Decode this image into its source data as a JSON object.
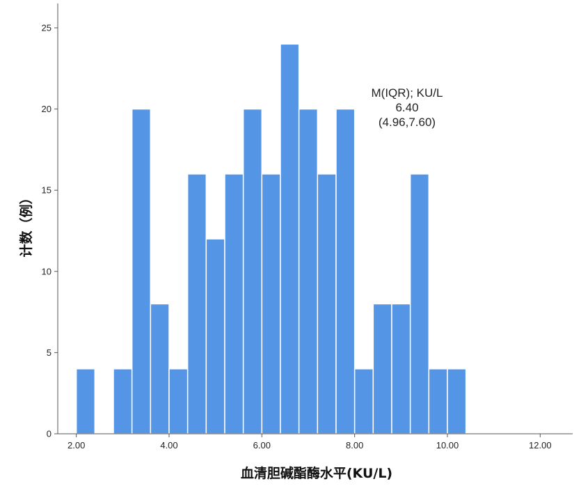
{
  "chart_data": {
    "type": "bar",
    "title": "",
    "xlabel": "血清胆碱酯酶水平(KU/L)",
    "ylabel": "计数（例）",
    "xlim": [
      1.6,
      12.7
    ],
    "ylim": [
      0,
      26.5
    ],
    "bin_width": 0.4,
    "x_ticks": [
      {
        "value": 2,
        "label": "2.00"
      },
      {
        "value": 4,
        "label": "4.00"
      },
      {
        "value": 6,
        "label": "6.00"
      },
      {
        "value": 8,
        "label": "8.00"
      },
      {
        "value": 10,
        "label": "10.00"
      },
      {
        "value": 12,
        "label": "12.00"
      }
    ],
    "y_ticks": [
      {
        "value": 0,
        "label": "0"
      },
      {
        "value": 5,
        "label": "5"
      },
      {
        "value": 10,
        "label": "10"
      },
      {
        "value": 15,
        "label": "15"
      },
      {
        "value": 20,
        "label": "20"
      },
      {
        "value": 25,
        "label": "25"
      }
    ],
    "bins": [
      {
        "x0": 2.0,
        "x1": 2.4,
        "count": 4
      },
      {
        "x0": 2.8,
        "x1": 3.2,
        "count": 4
      },
      {
        "x0": 3.2,
        "x1": 3.6,
        "count": 20
      },
      {
        "x0": 3.6,
        "x1": 4.0,
        "count": 8
      },
      {
        "x0": 4.0,
        "x1": 4.4,
        "count": 4
      },
      {
        "x0": 4.4,
        "x1": 4.8,
        "count": 16
      },
      {
        "x0": 4.8,
        "x1": 5.2,
        "count": 12
      },
      {
        "x0": 5.2,
        "x1": 5.6,
        "count": 16
      },
      {
        "x0": 5.6,
        "x1": 6.0,
        "count": 20
      },
      {
        "x0": 6.0,
        "x1": 6.4,
        "count": 16
      },
      {
        "x0": 6.4,
        "x1": 6.8,
        "count": 24
      },
      {
        "x0": 6.8,
        "x1": 7.2,
        "count": 20
      },
      {
        "x0": 7.2,
        "x1": 7.6,
        "count": 16
      },
      {
        "x0": 7.6,
        "x1": 8.0,
        "count": 20
      },
      {
        "x0": 8.0,
        "x1": 8.4,
        "count": 4
      },
      {
        "x0": 8.4,
        "x1": 8.8,
        "count": 8
      },
      {
        "x0": 8.8,
        "x1": 9.2,
        "count": 8
      },
      {
        "x0": 9.2,
        "x1": 9.6,
        "count": 16
      },
      {
        "x0": 9.6,
        "x1": 10.0,
        "count": 4
      },
      {
        "x0": 10.0,
        "x1": 10.4,
        "count": 4
      }
    ],
    "annotation": {
      "lines": [
        "M(IQR); KU/L",
        "6.40",
        "(4.96,7.60)"
      ]
    },
    "grid": false,
    "colors": {
      "bar": "#5595e6",
      "bar_stroke": "#ffffff",
      "axis": "#555555"
    }
  }
}
